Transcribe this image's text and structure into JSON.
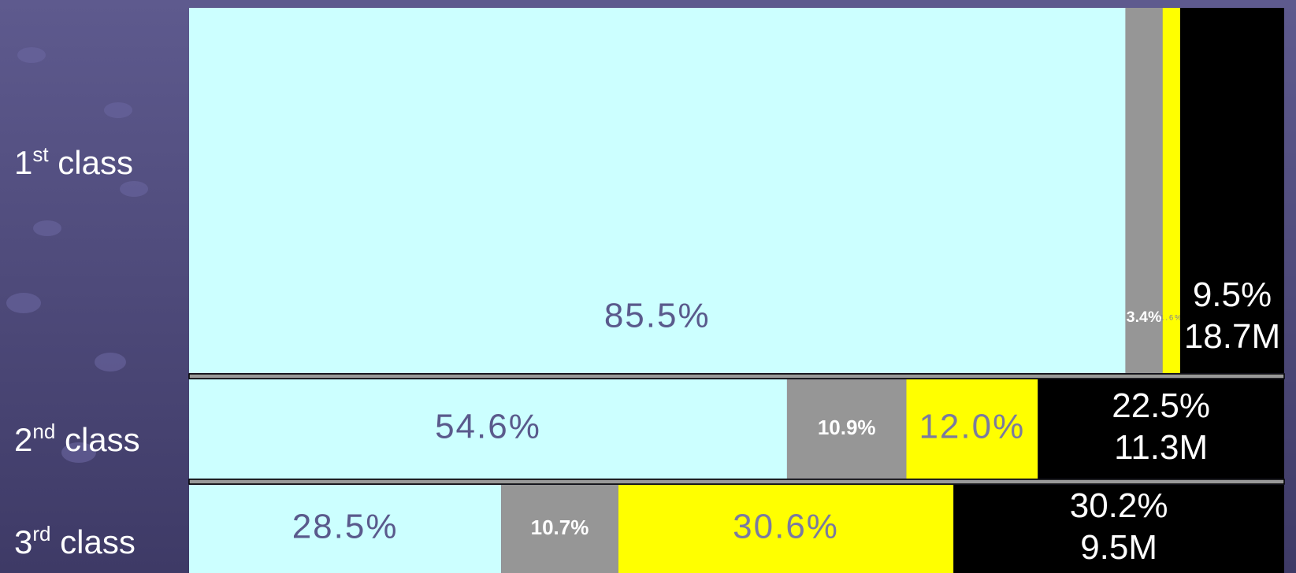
{
  "chart_data": {
    "type": "stacked-row",
    "categories": [
      "1st class",
      "2nd class",
      "3rd class"
    ],
    "series": [
      {
        "color": "#ccffff",
        "label_color": "#5a5a8c",
        "values": [
          85.5,
          54.6,
          28.5
        ],
        "value_labels": [
          "85.5%",
          "54.6%",
          "28.5%"
        ]
      },
      {
        "color": "#969696",
        "label_color": "#ffffff",
        "values": [
          3.4,
          10.9,
          10.7
        ],
        "value_labels": [
          "3.4%",
          "10.9%",
          "10.7%"
        ]
      },
      {
        "color": "#ffff00",
        "label_color": "#7a7aa0",
        "values": [
          1.6,
          12,
          30.6
        ],
        "value_labels": [
          "1.6%",
          "12.0%",
          "30.6%"
        ]
      },
      {
        "color": "#000000",
        "label_color": "#ffffff",
        "values": [
          9.5,
          22.5,
          30.2
        ],
        "value_labels": [
          "9.5%",
          "22.5%",
          "30.2%"
        ]
      }
    ],
    "annotations": [
      "18.7M",
      "11.3M",
      "9.5M"
    ]
  }
}
